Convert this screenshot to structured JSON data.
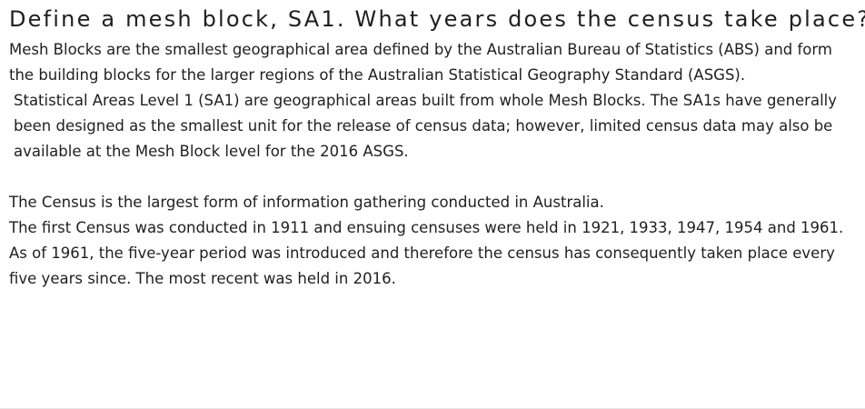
{
  "title": "Define a mesh block, SA1.  What years does the census take place?",
  "paragraphs": {
    "mesh_blocks": "Mesh Blocks are the smallest geographical area defined by the Australian Bureau of Statistics (ABS) and form the building blocks for the larger regions of the Australian Statistical Geography Standard (ASGS).",
    "sa1": "Statistical Areas Level 1 (SA1) are geographical areas built from whole Mesh Blocks. The SA1s have generally been designed as the smallest unit for the release of census data; however, limited census data may also be available at the Mesh Block level for the 2016 ASGS.",
    "census_intro": "The Census is the largest form of information gathering conducted in Australia.",
    "census_years": "The first Census was conducted in 1911 and ensuing censuses were held in 1921, 1933, 1947, 1954 and 1961. As of 1961, the five-year period was introduced and therefore the census has consequently taken place every five years since. The most recent was held in 2016."
  }
}
